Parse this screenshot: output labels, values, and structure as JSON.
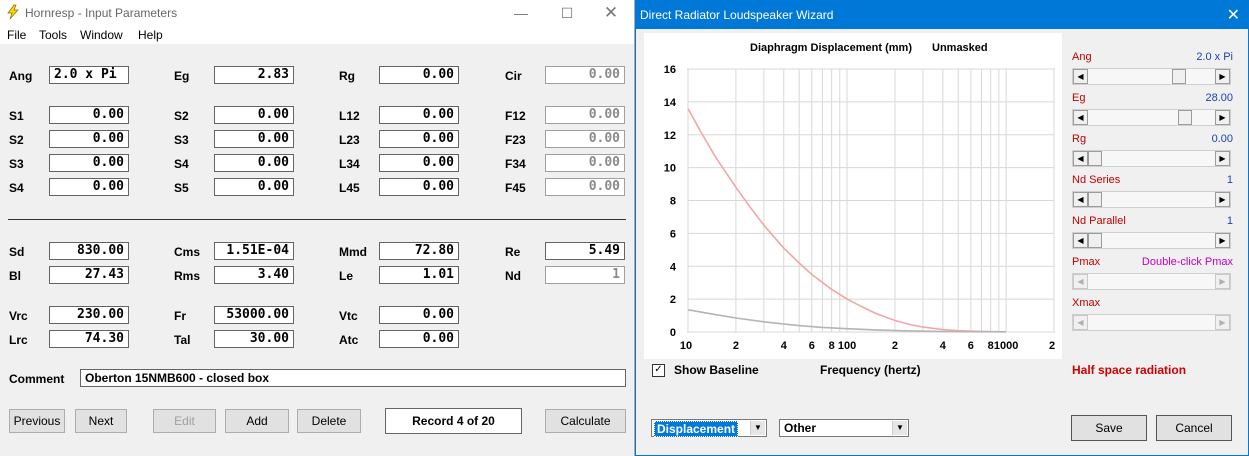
{
  "win1": {
    "title": "Hornresp - Input Parameters",
    "menu": [
      "File",
      "Tools",
      "Window",
      "Help"
    ],
    "fields": {
      "Ang": "2.0 x Pi",
      "Eg": "2.83",
      "Rg": "0.00",
      "Cir": "0.00",
      "S1": "0.00",
      "S2a": "0.00",
      "L12": "0.00",
      "F12": "0.00",
      "S2": "0.00",
      "S3a": "0.00",
      "L23": "0.00",
      "F23": "0.00",
      "S3": "0.00",
      "S4a": "0.00",
      "L34": "0.00",
      "F34": "0.00",
      "S4": "0.00",
      "S5": "0.00",
      "L45": "0.00",
      "F45": "0.00",
      "Sd": "830.00",
      "Cms": "1.51E-04",
      "Mmd": "72.80",
      "Re": "5.49",
      "Bl": "27.43",
      "Rms": "3.40",
      "Le": "1.01",
      "Nd": "1",
      "Vrc": "230.00",
      "Fr": "53000.00",
      "Vtc": "0.00",
      "Lrc": "74.30",
      "Tal": "30.00",
      "Atc": "0.00"
    },
    "labels": {
      "Ang": "Ang",
      "Eg": "Eg",
      "Rg": "Rg",
      "Cir": "Cir",
      "S1": "S1",
      "S2a": "S2",
      "L12": "L12",
      "F12": "F12",
      "S2": "S2",
      "S3a": "S3",
      "L23": "L23",
      "F23": "F23",
      "S3": "S3",
      "S4a": "S4",
      "L34": "L34",
      "F34": "F34",
      "S4": "S4",
      "S5": "S5",
      "L45": "L45",
      "F45": "F45",
      "Sd": "Sd",
      "Cms": "Cms",
      "Mmd": "Mmd",
      "Re": "Re",
      "Bl": "Bl",
      "Rms": "Rms",
      "Le": "Le",
      "Nd": "Nd",
      "Vrc": "Vrc",
      "Fr": "Fr",
      "Vtc": "Vtc",
      "Lrc": "Lrc",
      "Tal": "Tal",
      "Atc": "Atc"
    },
    "comment_label": "Comment",
    "comment": "Oberton 15NMB600 - closed box",
    "buttons": {
      "previous": "Previous",
      "next": "Next",
      "edit": "Edit",
      "add": "Add",
      "delete": "Delete",
      "calculate": "Calculate"
    },
    "record": "Record 4 of 20"
  },
  "win2": {
    "title": "Direct Radiator Loudspeaker Wizard",
    "chart_title": "Diaphragm Displacement (mm)",
    "chart_mode": "Unmasked",
    "x_axis_label": "Frequency (hertz)",
    "show_baseline": "Show Baseline",
    "radiation": "Half space radiation",
    "sliders": [
      {
        "label": "Ang",
        "value": "2.0 x Pi",
        "fill": 0.74,
        "enabled": true
      },
      {
        "label": "Eg",
        "value": "28.00",
        "fill": 0.8,
        "enabled": true
      },
      {
        "label": "Rg",
        "value": "0.00",
        "fill": 0.0,
        "enabled": true
      },
      {
        "label": "Nd  Series",
        "value": "1",
        "fill": 0.0,
        "enabled": true
      },
      {
        "label": "Nd  Parallel",
        "value": "1",
        "fill": 0.0,
        "enabled": true
      },
      {
        "label": "Pmax",
        "value": "Double-click Pmax",
        "fill": null,
        "enabled": false
      },
      {
        "label": "Xmax",
        "value": "",
        "fill": null,
        "enabled": false
      }
    ],
    "combo_plot": "Displacement",
    "combo_other": "Other",
    "save": "Save",
    "cancel": "Cancel"
  },
  "chart_data": {
    "type": "line",
    "title": "Diaphragm Displacement (mm)",
    "xlabel": "Frequency (hertz)",
    "ylabel": "",
    "xscale": "log",
    "xlim": [
      10,
      2000
    ],
    "ylim": [
      0,
      16
    ],
    "yticks": [
      0,
      2,
      4,
      6,
      8,
      10,
      12,
      14,
      16
    ],
    "xtick_labels": [
      "10",
      "2",
      "4",
      "6",
      "8",
      "100",
      "2",
      "4",
      "6",
      "8",
      "1000",
      "2"
    ],
    "grid": true,
    "series": [
      {
        "color": "#f2a6a6",
        "x": [
          10,
          12,
          15,
          20,
          25,
          30,
          40,
          50,
          60,
          80,
          100,
          120,
          150,
          200,
          250,
          300,
          400,
          500,
          600,
          800,
          1000
        ],
        "y": [
          13.6,
          12.2,
          10.6,
          8.8,
          7.5,
          6.5,
          5.1,
          4.2,
          3.5,
          2.6,
          2.0,
          1.6,
          1.15,
          0.7,
          0.45,
          0.3,
          0.15,
          0.08,
          0.05,
          0.02,
          0.01
        ]
      },
      {
        "color": "#b4b4b4",
        "x": [
          10,
          15,
          20,
          30,
          40,
          50,
          70,
          100,
          150,
          200,
          300,
          500,
          1000
        ],
        "y": [
          1.35,
          1.05,
          0.85,
          0.62,
          0.48,
          0.39,
          0.28,
          0.2,
          0.13,
          0.09,
          0.05,
          0.02,
          0.01
        ]
      }
    ]
  }
}
